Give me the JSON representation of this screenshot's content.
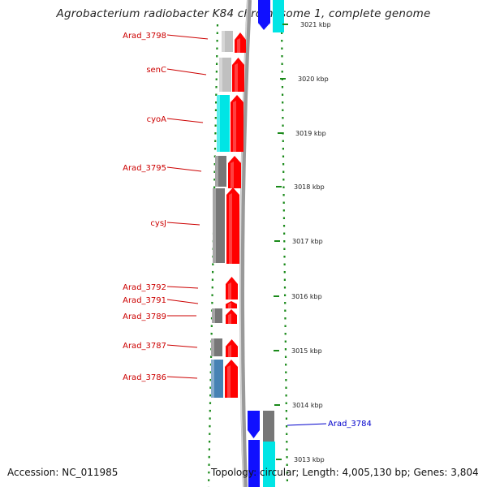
{
  "title": "Agrobacterium radiobacter K84 chromosome 1, complete genome",
  "accession_text": "Accession: NC_011985",
  "topology_text": "Topology: circular; Length: 4,005,130 bp; Genes: 3,804",
  "colors": {
    "forward_gene": "#ff0000",
    "reverse_grey": "#8a8a8a",
    "reverse_light_grey": "#c0c0c0",
    "reverse_cyan": "#00e5e5",
    "reverse_steelblue": "#4682b4",
    "blue_gene": "#1010ff",
    "label_red": "#cc0000",
    "label_blue": "#0000cc",
    "tick_green": "#1a8a1a",
    "backbone": "#999999"
  },
  "kbp_ticks": [
    {
      "label": "3021 kbp"
    },
    {
      "label": "3020 kbp"
    },
    {
      "label": "3019 kbp"
    },
    {
      "label": "3018 kbp"
    },
    {
      "label": "3017 kbp"
    },
    {
      "label": "3016 kbp"
    },
    {
      "label": "3015 kbp"
    },
    {
      "label": "3014 kbp"
    },
    {
      "label": "3013 kbp"
    }
  ],
  "left_labels": [
    {
      "name": "Arad_3798"
    },
    {
      "name": "senC"
    },
    {
      "name": "cyoA"
    },
    {
      "name": "Arad_3795"
    },
    {
      "name": "cysJ"
    },
    {
      "name": "Arad_3792"
    },
    {
      "name": "Arad_3791"
    },
    {
      "name": "Arad_3789"
    },
    {
      "name": "Arad_3787"
    },
    {
      "name": "Arad_3786"
    }
  ],
  "right_labels": [
    {
      "name": "Arad_3784"
    }
  ]
}
